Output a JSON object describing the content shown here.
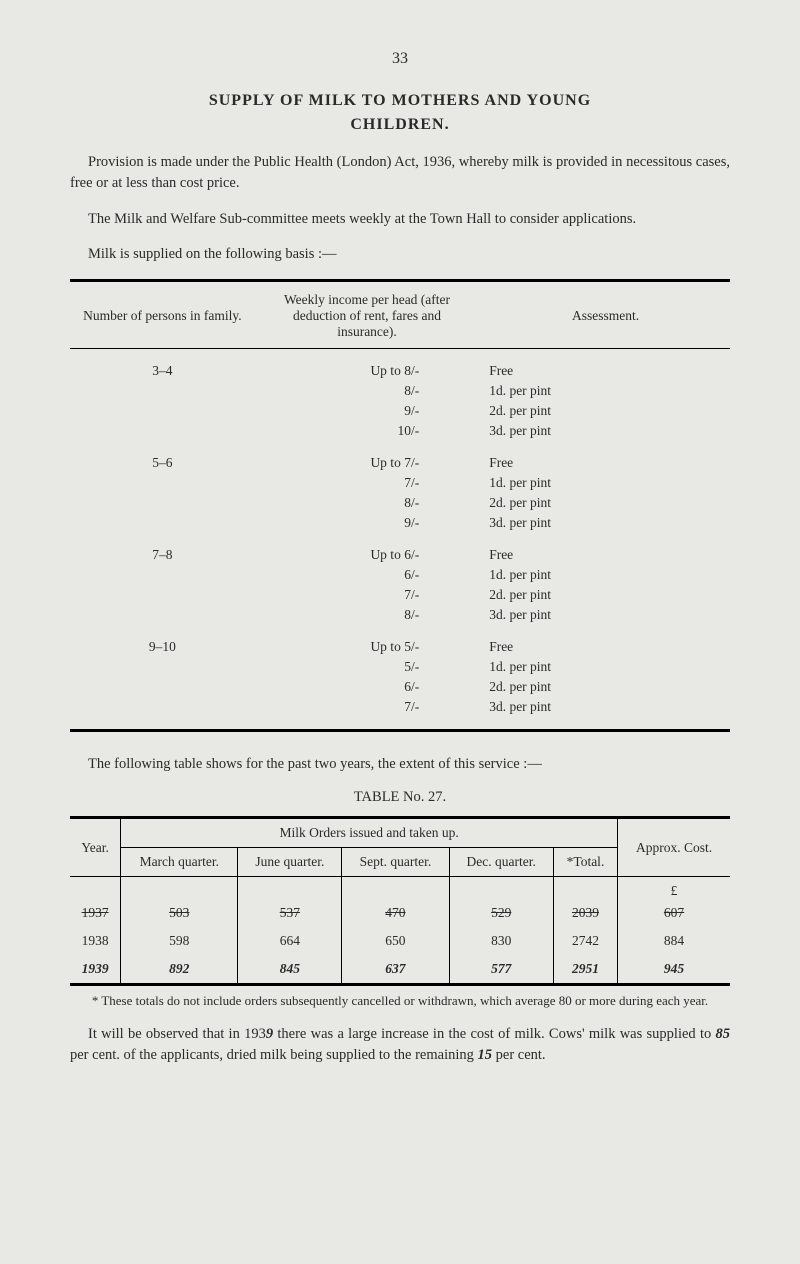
{
  "page_number": "33",
  "title_line1": "SUPPLY OF MILK TO MOTHERS AND YOUNG",
  "title_line2": "CHILDREN.",
  "para1": "Provision is made under the Public Health (London) Act, 1936, whereby milk is provided in necessitous cases, free or at less than cost price.",
  "para2": "The Milk and Welfare Sub-committee meets weekly at the Town Hall to consider applications.",
  "para3": "Milk is supplied on the following basis :—",
  "table1": {
    "headers": {
      "col1": "Number of persons in family.",
      "col2": "Weekly income per head (after deduction of rent, fares and insurance).",
      "col3": "Assessment."
    },
    "groups": [
      {
        "persons": "3–4",
        "rows": [
          {
            "income": "Up to 8/-",
            "assess": "Free"
          },
          {
            "income": "8/-",
            "assess": "1d. per pint"
          },
          {
            "income": "9/-",
            "assess": "2d. per pint"
          },
          {
            "income": "10/-",
            "assess": "3d. per pint"
          }
        ]
      },
      {
        "persons": "5–6",
        "rows": [
          {
            "income": "Up to 7/-",
            "assess": "Free"
          },
          {
            "income": "7/-",
            "assess": "1d. per pint"
          },
          {
            "income": "8/-",
            "assess": "2d. per pint"
          },
          {
            "income": "9/-",
            "assess": "3d. per pint"
          }
        ]
      },
      {
        "persons": "7–8",
        "rows": [
          {
            "income": "Up to 6/-",
            "assess": "Free"
          },
          {
            "income": "6/-",
            "assess": "1d. per pint"
          },
          {
            "income": "7/-",
            "assess": "2d. per pint"
          },
          {
            "income": "8/-",
            "assess": "3d. per pint"
          }
        ]
      },
      {
        "persons": "9–10",
        "rows": [
          {
            "income": "Up to 5/-",
            "assess": "Free"
          },
          {
            "income": "5/-",
            "assess": "1d. per pint"
          },
          {
            "income": "6/-",
            "assess": "2d. per pint"
          },
          {
            "income": "7/-",
            "assess": "3d. per pint"
          }
        ]
      }
    ]
  },
  "para4": "The following table shows for the past two years, the extent of this service :—",
  "table2_title": "TABLE No. 27.",
  "table2": {
    "head": {
      "year": "Year.",
      "milk": "Milk Orders issued and taken up.",
      "march": "March quarter.",
      "june": "June quarter.",
      "sept": "Sept. quarter.",
      "dec": "Dec. quarter.",
      "total": "*Total.",
      "approx": "Approx. Cost."
    },
    "pound": "£",
    "row_1937": {
      "year": "1937",
      "march": "503",
      "june": "537",
      "sept": "470",
      "dec": "529",
      "total": "2039",
      "cost": "607"
    },
    "row_1938": {
      "year": "1938",
      "march": "598",
      "june": "664",
      "sept": "650",
      "dec": "830",
      "total": "2742",
      "cost": "884"
    },
    "row_1939": {
      "year": "1939",
      "march": "892",
      "june": "845",
      "sept": "637",
      "dec": "577",
      "total": "2951",
      "cost": "945"
    }
  },
  "footnote": "* These totals do not include orders subsequently cancelled or withdrawn, which average 80 or more during each year.",
  "para5a": "It will be observed that in 193",
  "para5a_hand": "9",
  "para5b": " there was a large increase in the cost of milk. Cows' milk was supplied to ",
  "para5_hand1": "85",
  "para5c": " per cent. of the applicants, dried milk being supplied to the remaining ",
  "para5_hand2": "15",
  "para5d": " per cent."
}
